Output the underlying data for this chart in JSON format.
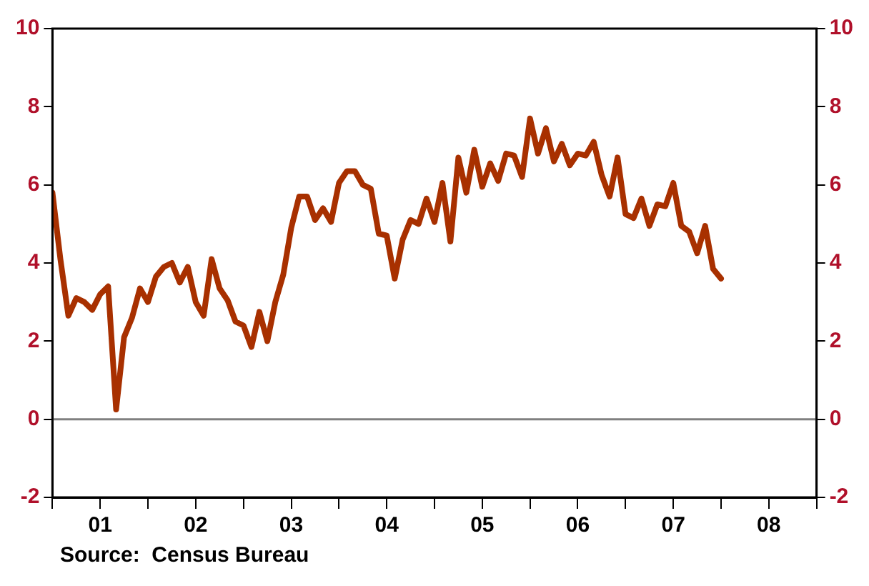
{
  "chart_data": {
    "type": "line",
    "x": [
      "2001-01",
      "2001-02",
      "2001-03",
      "2001-04",
      "2001-05",
      "2001-06",
      "2001-07",
      "2001-08",
      "2001-09",
      "2001-10",
      "2001-11",
      "2001-12",
      "2002-01",
      "2002-02",
      "2002-03",
      "2002-04",
      "2002-05",
      "2002-06",
      "2002-07",
      "2002-08",
      "2002-09",
      "2002-10",
      "2002-11",
      "2002-12",
      "2003-01",
      "2003-02",
      "2003-03",
      "2003-04",
      "2003-05",
      "2003-06",
      "2003-07",
      "2003-08",
      "2003-09",
      "2003-10",
      "2003-11",
      "2003-12",
      "2004-01",
      "2004-02",
      "2004-03",
      "2004-04",
      "2004-05",
      "2004-06",
      "2004-07",
      "2004-08",
      "2004-09",
      "2004-10",
      "2004-11",
      "2004-12",
      "2005-01",
      "2005-02",
      "2005-03",
      "2005-04",
      "2005-05",
      "2005-06",
      "2005-07",
      "2005-08",
      "2005-09",
      "2005-10",
      "2005-11",
      "2005-12",
      "2006-01",
      "2006-02",
      "2006-03",
      "2006-04",
      "2006-05",
      "2006-06",
      "2006-07",
      "2006-08",
      "2006-09",
      "2006-10",
      "2006-11",
      "2006-12",
      "2007-01",
      "2007-02",
      "2007-03",
      "2007-04",
      "2007-05",
      "2007-06",
      "2007-07",
      "2007-08",
      "2007-09",
      "2007-10",
      "2007-11",
      "2007-12",
      "2008-01"
    ],
    "series": [
      {
        "color": "#a83000",
        "values": [
          5.8,
          4.1,
          2.65,
          3.1,
          3.0,
          2.8,
          3.2,
          3.4,
          0.25,
          2.1,
          2.6,
          3.35,
          3.0,
          3.65,
          3.9,
          4.0,
          3.5,
          3.9,
          3.0,
          2.65,
          4.1,
          3.35,
          3.05,
          2.5,
          2.4,
          1.85,
          2.75,
          2.0,
          3.0,
          3.7,
          4.9,
          5.7,
          5.7,
          5.1,
          5.4,
          5.05,
          6.05,
          6.35,
          6.35,
          6.0,
          5.9,
          4.75,
          4.7,
          3.6,
          4.6,
          5.1,
          5.0,
          5.65,
          5.05,
          6.05,
          4.55,
          6.7,
          5.8,
          6.9,
          5.95,
          6.55,
          6.1,
          6.8,
          6.75,
          6.2,
          7.7,
          6.8,
          7.45,
          6.6,
          7.05,
          6.5,
          6.8,
          6.75,
          7.1,
          6.25,
          5.7,
          6.7,
          5.25,
          5.15,
          5.65,
          4.95,
          5.5,
          5.45,
          6.05,
          4.95,
          4.8,
          4.25,
          4.95,
          3.85,
          3.6
        ]
      }
    ],
    "xlim": [
      "2001-01",
      "2009-01"
    ],
    "xticks": [
      {
        "value": "2001-01",
        "label": null
      },
      {
        "value": "2001-07",
        "label": "01"
      },
      {
        "value": "2002-01",
        "label": null
      },
      {
        "value": "2002-07",
        "label": "02"
      },
      {
        "value": "2003-01",
        "label": null
      },
      {
        "value": "2003-07",
        "label": "03"
      },
      {
        "value": "2004-01",
        "label": null
      },
      {
        "value": "2004-07",
        "label": "04"
      },
      {
        "value": "2005-01",
        "label": null
      },
      {
        "value": "2005-07",
        "label": "05"
      },
      {
        "value": "2006-01",
        "label": null
      },
      {
        "value": "2006-07",
        "label": "06"
      },
      {
        "value": "2007-01",
        "label": null
      },
      {
        "value": "2007-07",
        "label": "07"
      },
      {
        "value": "2008-01",
        "label": null
      },
      {
        "value": "2008-07",
        "label": "08"
      },
      {
        "value": "2009-01",
        "label": null
      }
    ],
    "ylim": [
      -2,
      10
    ],
    "yticks": [
      -2,
      0,
      2,
      4,
      6,
      8,
      10
    ],
    "y2lim": [
      -2,
      10
    ],
    "y2ticks": [
      -2,
      0,
      2,
      4,
      6,
      8,
      10
    ],
    "ref_lines": [
      {
        "axis": "y",
        "value": 0,
        "color": "#808080"
      }
    ],
    "grid": false,
    "legend": false,
    "marker": "none",
    "line_style": "solid",
    "annotations": [
      "Source:  Census Bureau"
    ]
  }
}
